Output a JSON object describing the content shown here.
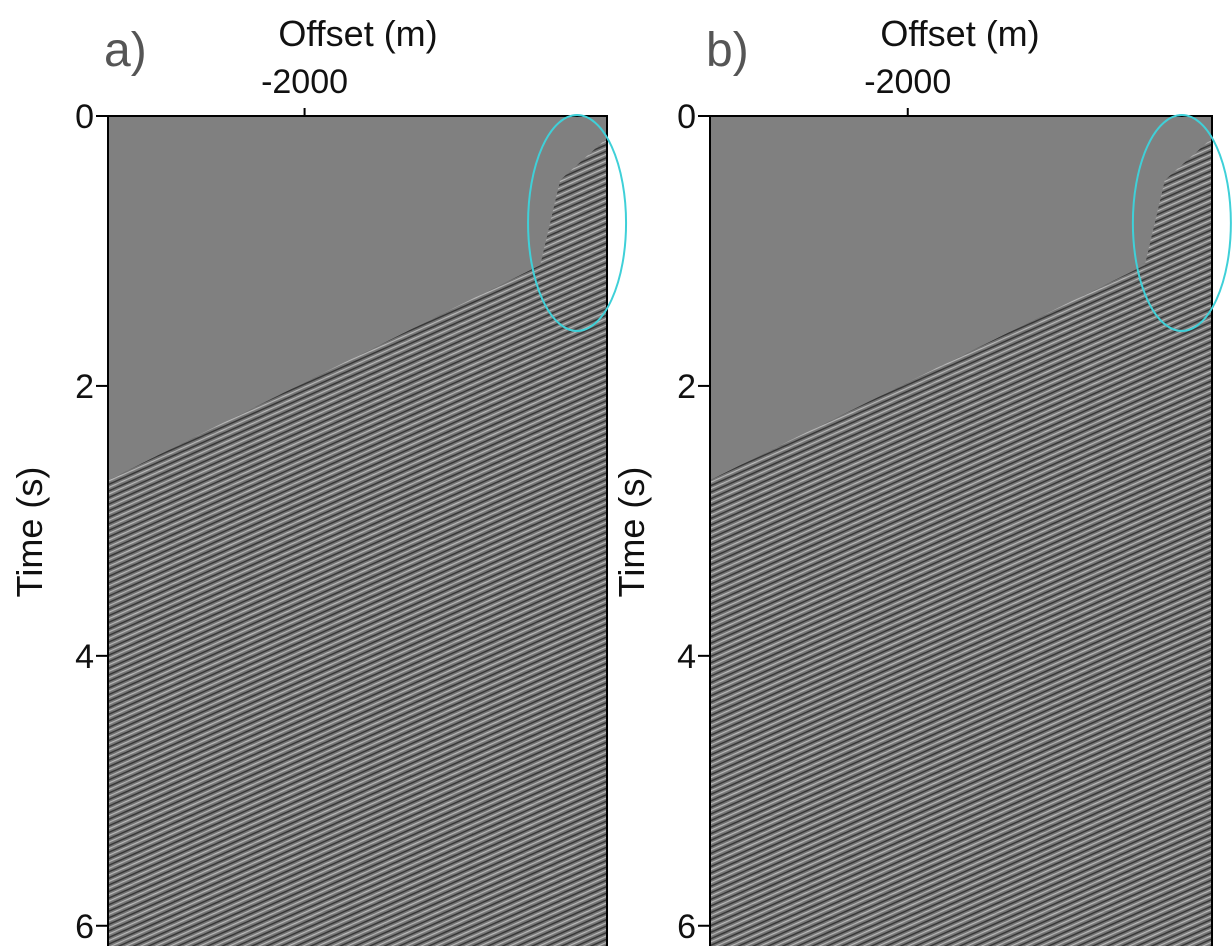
{
  "chart_data": [
    {
      "type": "seismic",
      "panel_label": "a)",
      "x_label": "Offset (m)",
      "y_label": "Time (s)",
      "xlim": [
        -3300,
        0
      ],
      "xticks": [
        -2000
      ],
      "ylim": [
        0,
        6.15
      ],
      "yticks": [
        0,
        2,
        4,
        6
      ]
    },
    {
      "type": "seismic",
      "panel_label": "b)",
      "x_label": "Offset (m)",
      "y_label": "Time (s)",
      "xlim": [
        -3300,
        0
      ],
      "xticks": [
        -2000
      ],
      "ylim": [
        0,
        6.15
      ],
      "yticks": [
        0,
        2,
        4,
        6
      ]
    }
  ]
}
